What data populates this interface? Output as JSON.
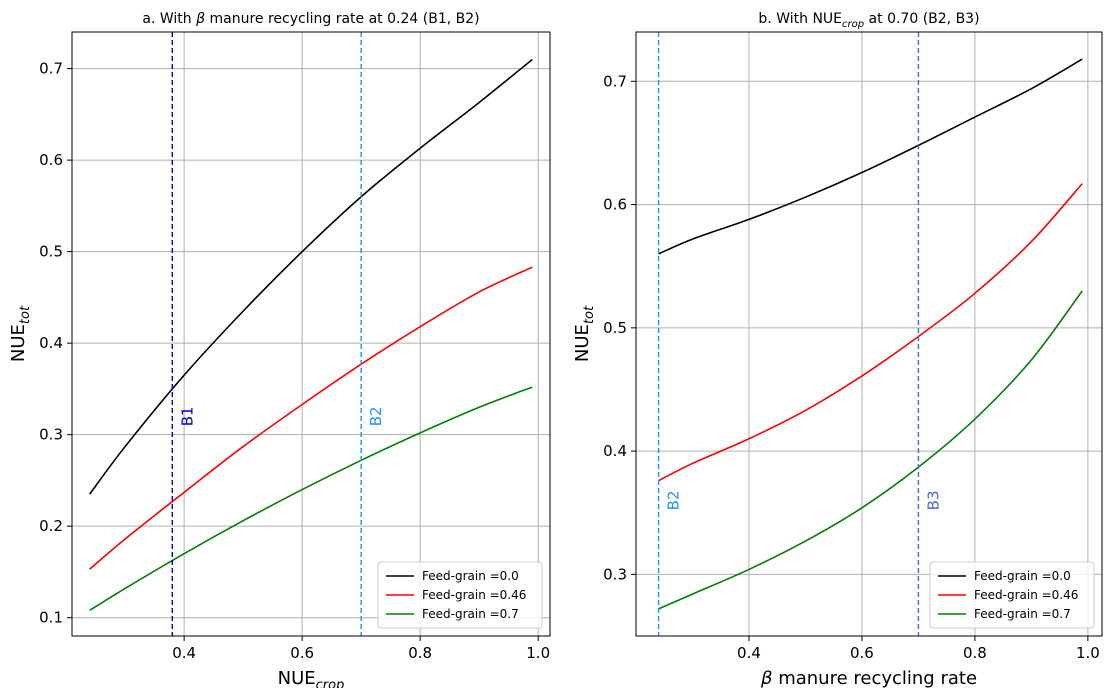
{
  "chart_data": [
    {
      "type": "line",
      "title": {
        "pre": "a. With ",
        "greek": "β",
        "post": " manure recycling rate at 0.24 (B1, B2)"
      },
      "xlabel": {
        "base": "NUE",
        "sub": "crop",
        "post": ""
      },
      "ylabel": {
        "base": "NUE",
        "sub": "tot"
      },
      "xlim": [
        0.21,
        1.02
      ],
      "ylim": [
        0.08,
        0.74
      ],
      "xticks": [
        0.4,
        0.6,
        0.8,
        1.0
      ],
      "xtick_labels": [
        "0.4",
        "0.6",
        "0.8",
        "1.0"
      ],
      "yticks": [
        0.1,
        0.2,
        0.3,
        0.4,
        0.5,
        0.6,
        0.7
      ],
      "ytick_labels": [
        "0.1",
        "0.2",
        "0.3",
        "0.4",
        "0.5",
        "0.6",
        "0.7"
      ],
      "grid": true,
      "legend_position": "lower-right",
      "vlines": [
        {
          "x": 0.38,
          "label": "B1",
          "color": "#0000cd",
          "label_y": 0.32
        },
        {
          "x": 0.7,
          "label": "B2",
          "color": "#1e90ff",
          "label_y": 0.32
        }
      ],
      "series": [
        {
          "name": "Feed-grain =0.0",
          "color": "#000000",
          "x": [
            0.24,
            0.3,
            0.4,
            0.5,
            0.6,
            0.7,
            0.8,
            0.9,
            0.99
          ],
          "y": [
            0.235,
            0.287,
            0.365,
            0.435,
            0.5,
            0.56,
            0.613,
            0.663,
            0.71
          ]
        },
        {
          "name": "Feed-grain =0.46",
          "color": "#ff0000",
          "x": [
            0.24,
            0.3,
            0.4,
            0.5,
            0.6,
            0.7,
            0.8,
            0.9,
            0.99
          ],
          "y": [
            0.153,
            0.186,
            0.237,
            0.287,
            0.333,
            0.377,
            0.418,
            0.456,
            0.483
          ]
        },
        {
          "name": "Feed-grain =0.7",
          "color": "#008000",
          "x": [
            0.24,
            0.3,
            0.4,
            0.5,
            0.6,
            0.7,
            0.8,
            0.9,
            0.99
          ],
          "y": [
            0.108,
            0.132,
            0.17,
            0.206,
            0.24,
            0.272,
            0.302,
            0.33,
            0.352
          ]
        }
      ]
    },
    {
      "type": "line",
      "title": {
        "pre": "b. With ",
        "base": "NUE",
        "sub": "crop",
        "post": " at 0.70 (B2, B3)"
      },
      "xlabel": {
        "greek": "β",
        "post": " manure recycling rate"
      },
      "ylabel": {
        "base": "NUE",
        "sub": "tot"
      },
      "xlim": [
        0.2,
        1.025
      ],
      "ylim": [
        0.25,
        0.74
      ],
      "xticks": [
        0.4,
        0.6,
        0.8,
        1.0
      ],
      "xtick_labels": [
        "0.4",
        "0.6",
        "0.8",
        "1.0"
      ],
      "yticks": [
        0.3,
        0.4,
        0.5,
        0.6,
        0.7
      ],
      "ytick_labels": [
        "0.3",
        "0.4",
        "0.5",
        "0.6",
        "0.7"
      ],
      "grid": true,
      "legend_position": "lower-right",
      "vlines": [
        {
          "x": 0.24,
          "label": "B2",
          "color": "#1e90ff",
          "label_y": 0.36
        },
        {
          "x": 0.7,
          "label": "B3",
          "color": "#4169e1",
          "label_y": 0.36
        }
      ],
      "series": [
        {
          "name": "Feed-grain =0.0",
          "color": "#000000",
          "x": [
            0.24,
            0.3,
            0.4,
            0.5,
            0.6,
            0.7,
            0.8,
            0.9,
            0.99
          ],
          "y": [
            0.56,
            0.572,
            0.588,
            0.606,
            0.626,
            0.648,
            0.671,
            0.694,
            0.718
          ]
        },
        {
          "name": "Feed-grain =0.46",
          "color": "#ff0000",
          "x": [
            0.24,
            0.3,
            0.4,
            0.5,
            0.6,
            0.7,
            0.8,
            0.9,
            0.99
          ],
          "y": [
            0.376,
            0.39,
            0.41,
            0.433,
            0.461,
            0.493,
            0.528,
            0.57,
            0.617
          ]
        },
        {
          "name": "Feed-grain =0.7",
          "color": "#008000",
          "x": [
            0.24,
            0.3,
            0.4,
            0.5,
            0.6,
            0.7,
            0.8,
            0.9,
            0.99
          ],
          "y": [
            0.272,
            0.284,
            0.304,
            0.327,
            0.354,
            0.387,
            0.426,
            0.474,
            0.53
          ]
        }
      ]
    }
  ]
}
